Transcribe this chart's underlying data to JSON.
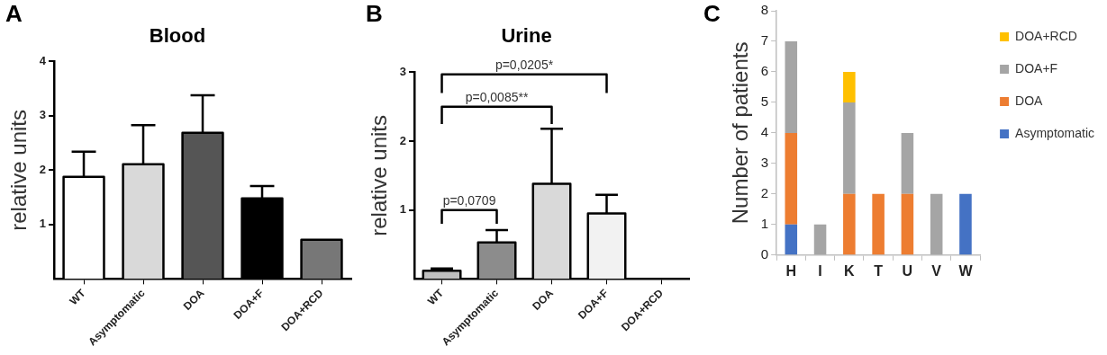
{
  "chart_data": [
    {
      "type": "bar",
      "title": "Blood",
      "ylabel": "relative units",
      "annotations": [
        "A"
      ],
      "categories": [
        "WT",
        "Asymptomatic",
        "DOA",
        "DOA+F",
        "DOA+RCD"
      ],
      "values": [
        1.88,
        2.11,
        2.69,
        1.48,
        0.72
      ],
      "colors": [
        "#ffffff",
        "#d9d9d9",
        "#555555",
        "#000000",
        "#777777"
      ],
      "errors": [
        [
          1.88,
          2.34
        ],
        [
          2.11,
          2.83
        ],
        [
          2.69,
          3.38
        ],
        [
          1.48,
          1.71
        ],
        null
      ],
      "ylim": [
        0,
        4
      ],
      "yticks": [
        1,
        2,
        3,
        4
      ],
      "grid": false,
      "legend": false
    },
    {
      "type": "bar",
      "title": "Urine",
      "ylabel": "relative units",
      "annotations": [
        "B",
        "p=0,0709",
        "p=0,0085**",
        "p=0,0205*"
      ],
      "categories": [
        "WT",
        "Asymptomatic",
        "DOA",
        "DOA+F",
        "DOA+RCD"
      ],
      "values": [
        0.12,
        0.53,
        1.38,
        0.95,
        0
      ],
      "colors": [
        "#bfbfbf",
        "#8c8c8c",
        "#d9d9d9",
        "#f2f2f2",
        "#ffffff"
      ],
      "errors": [
        [
          0.12,
          0.15
        ],
        [
          0.53,
          0.71
        ],
        [
          1.38,
          2.18
        ],
        [
          0.95,
          1.22
        ],
        null
      ],
      "ylim": [
        0,
        3
      ],
      "yticks": [
        1,
        2,
        3
      ],
      "grid": false,
      "legend": false
    },
    {
      "type": "bar",
      "stacked": true,
      "ylabel": "Number of patients",
      "annotations": [
        "C"
      ],
      "categories": [
        "H",
        "I",
        "K",
        "T",
        "U",
        "V",
        "W"
      ],
      "series": [
        {
          "name": "Asymptomatic",
          "color": "#4472c4",
          "values": [
            1,
            0,
            0,
            0,
            0,
            0,
            2
          ]
        },
        {
          "name": "DOA",
          "color": "#ed7d31",
          "values": [
            3,
            0,
            2,
            2,
            2,
            0,
            0
          ]
        },
        {
          "name": "DOA+F",
          "color": "#a5a5a5",
          "values": [
            3,
            1,
            3,
            0,
            2,
            2,
            0
          ]
        },
        {
          "name": "DOA+RCD",
          "color": "#ffc000",
          "values": [
            0,
            0,
            1,
            0,
            0,
            0,
            0
          ]
        }
      ],
      "ylim": [
        0,
        8
      ],
      "yticks": [
        0,
        1,
        2,
        3,
        4,
        5,
        6,
        7,
        8
      ],
      "grid": false,
      "legend": "top right"
    }
  ]
}
